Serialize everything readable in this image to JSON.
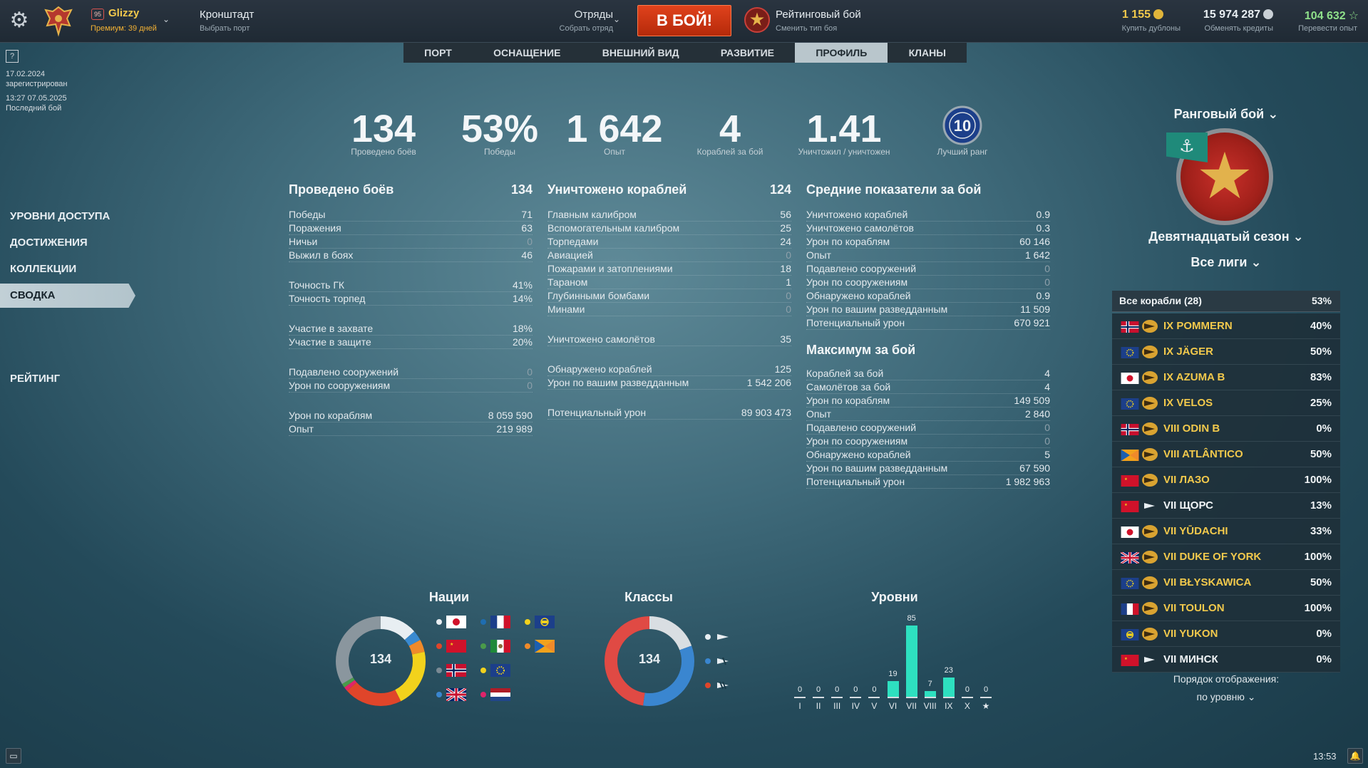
{
  "topbar": {
    "account": {
      "level": "95",
      "name": "Glizzy",
      "premium": "Премиум: 39 дней"
    },
    "port": {
      "name": "Кронштадт",
      "sub": "Выбрать порт"
    },
    "division": {
      "title": "Отряды",
      "sub": "Собрать отряд"
    },
    "battle_button": "В БОЙ!",
    "mode": {
      "title": "Рейтинговый бой",
      "sub": "Сменить тип боя"
    },
    "currency": [
      {
        "value": "1 155",
        "sub": "Купить дублоны",
        "color": "#f2c94c"
      },
      {
        "value": "15 974 287",
        "sub": "Обменять кредиты",
        "color": "#e8eef2"
      },
      {
        "value": "104 632",
        "sub": "Перевести опыт",
        "color": "#8fe08a"
      }
    ]
  },
  "tabs": [
    {
      "label": "ПОРТ"
    },
    {
      "label": "ОСНАЩЕНИЕ"
    },
    {
      "label": "ВНЕШНИЙ ВИД"
    },
    {
      "label": "РАЗВИТИЕ"
    },
    {
      "label": "ПРОФИЛЬ",
      "active": true
    },
    {
      "label": "КЛАНЫ"
    }
  ],
  "left": {
    "help": "?",
    "reg_date": "17.02.2024",
    "reg_label": "зарегистрирован",
    "last_time": "13:27  07.05.2025",
    "last_label": "Последний бой",
    "menu": [
      "УРОВНИ ДОСТУПА",
      "ДОСТИЖЕНИЯ",
      "КОЛЛЕКЦИИ",
      "СВОДКА",
      "РЕЙТИНГ"
    ]
  },
  "summary": [
    {
      "value": "134",
      "label": "Проведено боёв"
    },
    {
      "value": "53%",
      "label": "Победы"
    },
    {
      "value": "1 642",
      "label": "Опыт"
    },
    {
      "value": "4",
      "label": "Кораблей за бой"
    },
    {
      "value": "1.41",
      "label": "Уничтожил / уничтожен"
    },
    {
      "value": "10",
      "label": "Лучший ранг"
    }
  ],
  "col1": {
    "title": "Проведено боёв",
    "total": "134",
    "groups": [
      [
        [
          "Победы",
          "71"
        ],
        [
          "Поражения",
          "63"
        ],
        [
          "Ничьи",
          "0"
        ],
        [
          "Выжил в боях",
          "46"
        ]
      ],
      [
        [
          "Точность ГК",
          "41%"
        ],
        [
          "Точность торпед",
          "14%"
        ]
      ],
      [
        [
          "Участие в захвате",
          "18%"
        ],
        [
          "Участие в защите",
          "20%"
        ]
      ],
      [
        [
          "Подавлено сооружений",
          "0"
        ],
        [
          "Урон по сооружениям",
          "0"
        ]
      ],
      [
        [
          "Урон по кораблям",
          "8 059 590"
        ],
        [
          "Опыт",
          "219 989"
        ]
      ]
    ]
  },
  "col2": {
    "title": "Уничтожено кораблей",
    "total": "124",
    "groups": [
      [
        [
          "Главным калибром",
          "56"
        ],
        [
          "Вспомогательным калибром",
          "25"
        ],
        [
          "Торпедами",
          "24"
        ],
        [
          "Авиацией",
          "0"
        ],
        [
          "Пожарами и затоплениями",
          "18"
        ],
        [
          "Тараном",
          "1"
        ],
        [
          "Глубинными бомбами",
          "0"
        ],
        [
          "Минами",
          "0"
        ]
      ],
      [
        [
          "Уничтожено самолётов",
          "35"
        ]
      ],
      [
        [
          "Обнаружено кораблей",
          "125"
        ],
        [
          "Урон по вашим разведданным",
          "1 542 206"
        ]
      ],
      [
        [
          "Потенциальный урон",
          "89 903 473"
        ]
      ]
    ]
  },
  "col3": {
    "title": "Средние показатели за бой",
    "rows": [
      [
        "Уничтожено кораблей",
        "0.9"
      ],
      [
        "Уничтожено самолётов",
        "0.3"
      ],
      [
        "Урон по кораблям",
        "60 146"
      ],
      [
        "Опыт",
        "1 642"
      ],
      [
        "Подавлено сооружений",
        "0"
      ],
      [
        "Урон по сооружениям",
        "0"
      ],
      [
        "Обнаружено кораблей",
        "0.9"
      ],
      [
        "Урон по вашим разведданным",
        "11 509"
      ],
      [
        "Потенциальный урон",
        "670 921"
      ]
    ],
    "max_title": "Максимум за бой",
    "max_rows": [
      [
        "Кораблей за бой",
        "4"
      ],
      [
        "Самолётов за бой",
        "4"
      ],
      [
        "Урон по кораблям",
        "149 509"
      ],
      [
        "Опыт",
        "2 840"
      ],
      [
        "Подавлено сооружений",
        "0"
      ],
      [
        "Урон по сооружениям",
        "0"
      ],
      [
        "Обнаружено кораблей",
        "5"
      ],
      [
        "Урон по вашим разведданным",
        "67 590"
      ],
      [
        "Потенциальный урон",
        "1 982 963"
      ]
    ]
  },
  "rank": {
    "mode": "Ранговый бой",
    "season": "Девятнадцатый сезон",
    "league": "Все лиги",
    "ships_header": "Все корабли (28)",
    "ships_header_pct": "53%",
    "ships": [
      {
        "name": "IX POMMERN",
        "pct": "40%",
        "flag": "norway",
        "color": "gold"
      },
      {
        "name": "IX JÄGER",
        "pct": "50%",
        "flag": "europe",
        "color": "gold"
      },
      {
        "name": "IX AZUMA B",
        "pct": "83%",
        "flag": "japan",
        "color": "gold"
      },
      {
        "name": "IX VELOS",
        "pct": "25%",
        "flag": "europe",
        "color": "gold"
      },
      {
        "name": "VIII ODIN B",
        "pct": "0%",
        "flag": "norway",
        "color": "gold"
      },
      {
        "name": "VIII ATLÂNTICO",
        "pct": "50%",
        "flag": "panam",
        "color": "gold"
      },
      {
        "name": "VII ЛАЗО",
        "pct": "100%",
        "flag": "ussr",
        "color": "gold"
      },
      {
        "name": "VII ЩОРС",
        "pct": "13%",
        "flag": "ussr",
        "color": "white"
      },
      {
        "name": "VII YŪDACHI",
        "pct": "33%",
        "flag": "japan",
        "color": "gold"
      },
      {
        "name": "VII DUKE OF YORK",
        "pct": "100%",
        "flag": "uk",
        "color": "gold"
      },
      {
        "name": "VII BŁYSKAWICA",
        "pct": "50%",
        "flag": "europe",
        "color": "gold"
      },
      {
        "name": "VII TOULON",
        "pct": "100%",
        "flag": "france",
        "color": "gold"
      },
      {
        "name": "VII YUKON",
        "pct": "0%",
        "flag": "commonwealth",
        "color": "gold"
      },
      {
        "name": "VII МИНСК",
        "pct": "0%",
        "flag": "ussr",
        "color": "white"
      }
    ],
    "order_label": "Порядок отображения:",
    "order_value": "по уровню"
  },
  "nations": {
    "title": "Нации",
    "total": "134",
    "legend": [
      {
        "flag": "japan",
        "dot": "#e8eef2"
      },
      {
        "flag": "france",
        "dot": "#1f6db0"
      },
      {
        "flag": "commonwealth",
        "dot": "#f2d21c"
      },
      {
        "flag": "ussr",
        "dot": "#e0452a"
      },
      {
        "flag": "italy",
        "dot": "#4a9a4a"
      },
      {
        "flag": "panam",
        "dot": "#f08a2a"
      },
      {
        "flag": "norway",
        "dot": "#7a8a94"
      },
      {
        "flag": "europe",
        "dot": "#f2d21c"
      },
      {
        "flag": "uk",
        "dot": "#3a86d0"
      },
      {
        "flag": "netherlands",
        "dot": "#e0246a"
      }
    ]
  },
  "classes": {
    "title": "Классы",
    "total": "134",
    "legend": [
      {
        "icon": "aircraft-carrier-icon",
        "dot": "#e8eef2"
      },
      {
        "icon": "battleship-icon",
        "dot": "#3a86d0"
      },
      {
        "icon": "destroyer-icon",
        "dot": "#e0452a"
      }
    ]
  },
  "levels": {
    "title": "Уровни",
    "labels": [
      "I",
      "II",
      "III",
      "IV",
      "V",
      "VI",
      "VII",
      "VIII",
      "IX",
      "X",
      "★"
    ],
    "values": [
      "0",
      "0",
      "0",
      "0",
      "0",
      "19",
      "85",
      "7",
      "23",
      "0",
      "0"
    ]
  },
  "chart_data": [
    {
      "type": "pie",
      "title": "Нации",
      "total": 134,
      "slices": [
        {
          "label": "japan",
          "value": 18,
          "color": "#e8eef2"
        },
        {
          "label": "commonwealth",
          "value": 5,
          "color": "#3a8ad0"
        },
        {
          "label": "panam",
          "value": 6,
          "color": "#f08a2a"
        },
        {
          "label": "europe",
          "value": 28,
          "color": "#f2d21c"
        },
        {
          "label": "ussr",
          "value": 28,
          "color": "#e0452a"
        },
        {
          "label": "netherlands",
          "value": 2,
          "color": "#e0246a"
        },
        {
          "label": "italy",
          "value": 2,
          "color": "#4a9a4a"
        },
        {
          "label": "norway",
          "value": 45,
          "color": "#8a969e"
        }
      ]
    },
    {
      "type": "pie",
      "title": "Классы",
      "total": 134,
      "slices": [
        {
          "label": "aircraft-carrier",
          "value": 26,
          "color": "#d9dee2"
        },
        {
          "label": "battleship",
          "value": 44,
          "color": "#3a86d0"
        },
        {
          "label": "destroyer",
          "value": 64,
          "color": "#e04a44"
        }
      ]
    },
    {
      "type": "bar",
      "title": "Уровни",
      "categories": [
        "I",
        "II",
        "III",
        "IV",
        "V",
        "VI",
        "VII",
        "VIII",
        "IX",
        "X",
        "★"
      ],
      "values": [
        0,
        0,
        0,
        0,
        0,
        19,
        85,
        7,
        23,
        0,
        0
      ],
      "ylim": [
        0,
        85
      ]
    }
  ],
  "footer": {
    "time": "13:53"
  }
}
